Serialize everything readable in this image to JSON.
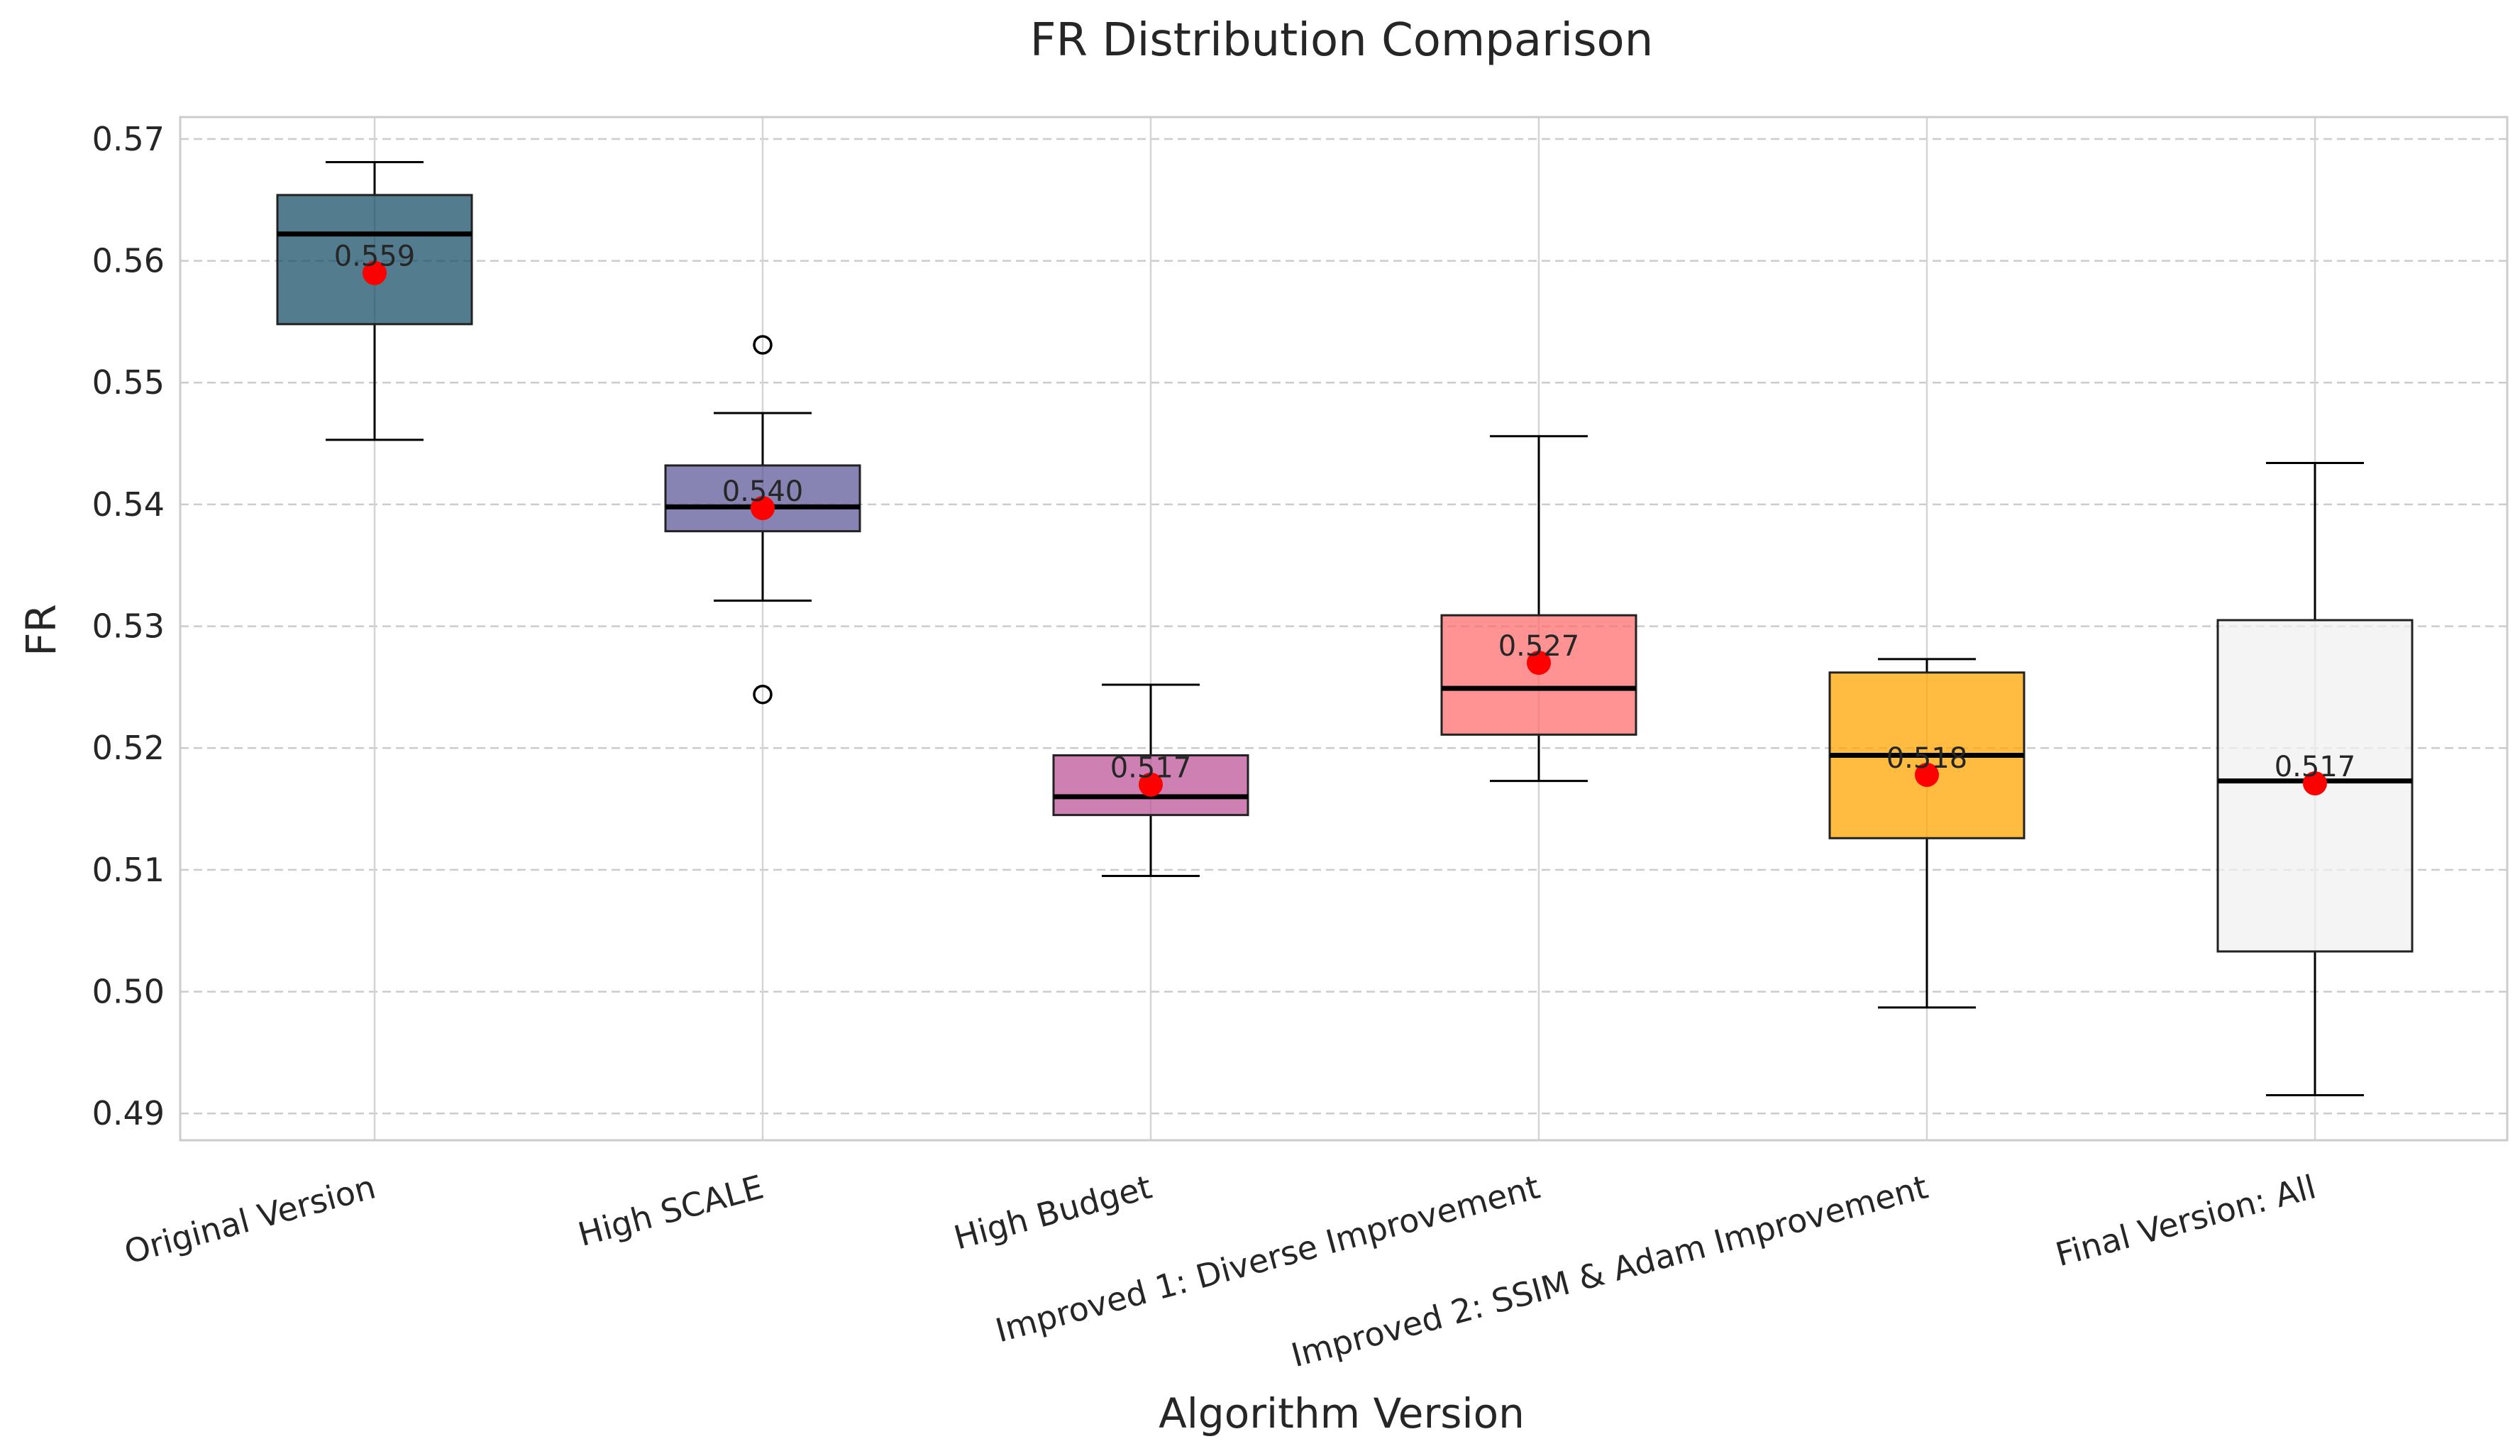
{
  "chart_data": {
    "type": "box",
    "title": "FR Distribution Comparison",
    "xlabel": "Algorithm Version",
    "ylabel": "FR",
    "ylim": [
      0.4878,
      0.5718
    ],
    "yticks": [
      0.49,
      0.5,
      0.51,
      0.52,
      0.53,
      0.54,
      0.55,
      0.56,
      0.57
    ],
    "ytick_labels": [
      "0.49",
      "0.50",
      "0.51",
      "0.52",
      "0.53",
      "0.54",
      "0.55",
      "0.56",
      "0.57"
    ],
    "grid": true,
    "categories": [
      "Original Version",
      "High SCALE",
      "High Budget",
      "Improved 1: Diverse Improvement",
      "Improved 2: SSIM & Adam Improvement",
      "Final Version: All"
    ],
    "boxes": [
      {
        "whisker_low": 0.5453,
        "q1": 0.5548,
        "median": 0.5622,
        "q3": 0.5654,
        "whisker_high": 0.5681,
        "mean": 0.559,
        "mean_label": "0.559",
        "outliers": [],
        "color": "#1a5069"
      },
      {
        "whisker_low": 0.5321,
        "q1": 0.5378,
        "median": 0.5398,
        "q3": 0.5432,
        "whisker_high": 0.5475,
        "mean": 0.5397,
        "mean_label": "0.540",
        "outliers": [
          0.5531,
          0.5244
        ],
        "color": "#5f5a98"
      },
      {
        "whisker_low": 0.5095,
        "q1": 0.5145,
        "median": 0.516,
        "q3": 0.5194,
        "whisker_high": 0.5252,
        "mean": 0.517,
        "mean_label": "0.517",
        "outliers": [],
        "color": "#bd5599"
      },
      {
        "whisker_low": 0.5173,
        "q1": 0.5211,
        "median": 0.5249,
        "q3": 0.5309,
        "whisker_high": 0.5456,
        "mean": 0.527,
        "mean_label": "0.527",
        "outliers": [],
        "color": "#ff6e6e"
      },
      {
        "whisker_low": 0.4987,
        "q1": 0.5126,
        "median": 0.5194,
        "q3": 0.5262,
        "whisker_high": 0.5273,
        "mean": 0.5178,
        "mean_label": "0.518",
        "outliers": [],
        "color": "#ffa600"
      },
      {
        "whisker_low": 0.4915,
        "q1": 0.5033,
        "median": 0.5173,
        "q3": 0.5305,
        "whisker_high": 0.5434,
        "mean": 0.5171,
        "mean_label": "0.517",
        "outliers": [],
        "color": "#f0f0f0"
      }
    ],
    "mean_marker_color": "#ff0000"
  }
}
